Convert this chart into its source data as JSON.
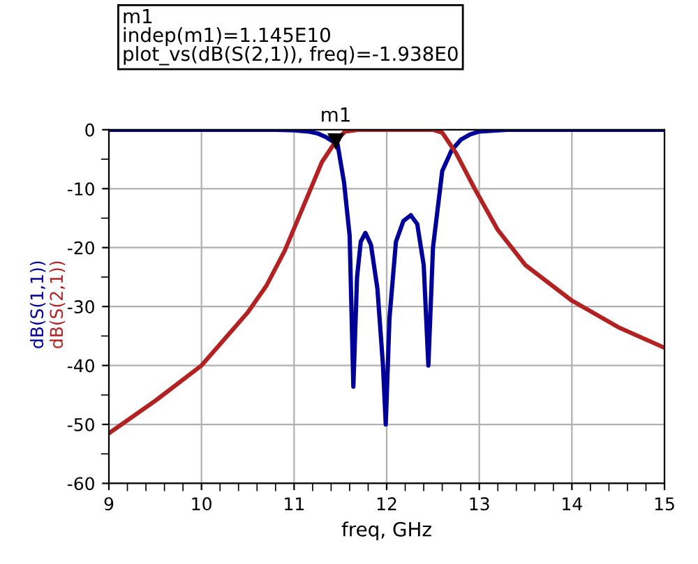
{
  "chart_data": {
    "type": "line",
    "xlabel": "freq, GHz",
    "annotations": [
      "m1\nindep(m1)=1.145E10\nplot_vs(dB(S(2,1)), freq)=-1.938E0",
      {
        "text": "m1",
        "x": 11.45,
        "y": -1.938
      }
    ],
    "series": [
      {
        "name": "dB(S(1,1))",
        "color": "#000099",
        "x": [
          9,
          10,
          10.8,
          11.0,
          11.15,
          11.25,
          11.35,
          11.47,
          11.54,
          11.6,
          11.64,
          11.68,
          11.72,
          11.77,
          11.83,
          11.9,
          11.96,
          11.99,
          12.03,
          12.1,
          12.18,
          12.26,
          12.33,
          12.4,
          12.45,
          12.5,
          12.6,
          12.7,
          12.8,
          12.9,
          13.0,
          13.3,
          15
        ],
        "values": [
          0,
          0,
          0,
          -0.1,
          -0.3,
          -0.6,
          -1.3,
          -2.5,
          -9,
          -18,
          -43.6,
          -25,
          -19,
          -17.5,
          -19.5,
          -27,
          -40,
          -50,
          -32,
          -19,
          -15.5,
          -14.5,
          -16,
          -23,
          -40,
          -20,
          -7,
          -3.5,
          -1.7,
          -0.8,
          -0.3,
          0,
          0
        ]
      },
      {
        "name": "dB(S(2,1))",
        "color": "#b22222",
        "x": [
          9,
          9.5,
          10,
          10.5,
          10.7,
          10.9,
          11.1,
          11.3,
          11.45,
          11.55,
          11.7,
          12.5,
          12.6,
          12.75,
          12.95,
          13.2,
          13.5,
          14,
          14.5,
          15
        ],
        "values": [
          -51.5,
          -46,
          -40,
          -31,
          -26.5,
          -20.5,
          -13,
          -5.5,
          -1.938,
          -0.3,
          0,
          0,
          -0.5,
          -4,
          -10,
          -17,
          -23,
          -29,
          -33.5,
          -37
        ]
      }
    ],
    "xlim": [
      9,
      15
    ],
    "ylim": [
      -60,
      0
    ],
    "xticks": [
      9,
      10,
      11,
      12,
      13,
      14,
      15
    ],
    "yticks": [
      0,
      -10,
      -20,
      -30,
      -40,
      -50,
      -60
    ],
    "grid": true,
    "legend": false,
    "marker": "none",
    "line_style": "solid"
  }
}
